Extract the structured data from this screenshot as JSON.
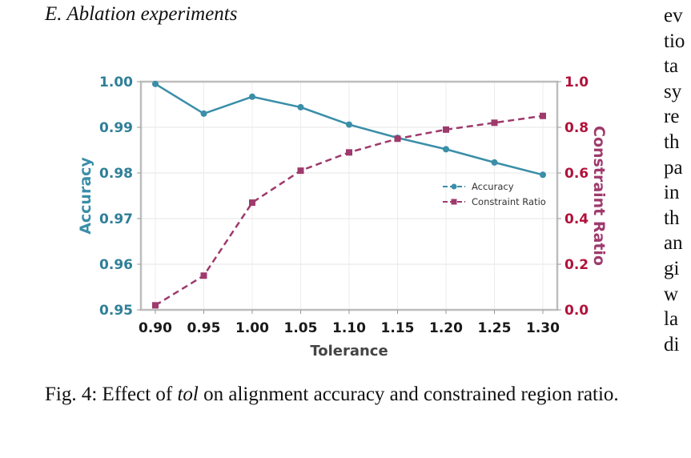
{
  "section": {
    "heading": "E.  Ablation experiments"
  },
  "caption": {
    "prefix": "Fig. 4: Effect of ",
    "emphasis": "tol",
    "suffix": " on alignment accuracy and constrained region ratio."
  },
  "right_column_fragments": [
    "ev",
    "tio",
    "ta",
    "sy",
    "re",
    "th",
    "pa",
    "in",
    "th",
    "an",
    "gi",
    "w",
    "la",
    "di"
  ],
  "colors": {
    "accuracy": "#3a8ea8",
    "constraint": "#9e3a6c",
    "left_axis": "#2f7f98",
    "right_axis": "#b1123a"
  },
  "chart_data": {
    "type": "line",
    "x": [
      0.9,
      0.95,
      1.0,
      1.05,
      1.1,
      1.15,
      1.2,
      1.25,
      1.3
    ],
    "x_tick_labels": [
      "0.90",
      "0.95",
      "1.00",
      "1.05",
      "1.10",
      "1.15",
      "1.20",
      "1.25",
      "1.30"
    ],
    "xlabel": "Tolerance",
    "ylabel_left": "Accuracy",
    "ylabel_right": "Constraint Ratio",
    "ylim_left": [
      0.95,
      1.0
    ],
    "ylim_right": [
      0.0,
      1.0
    ],
    "y_left_ticks": [
      "0.95",
      "0.96",
      "0.97",
      "0.98",
      "0.99",
      "1.00"
    ],
    "y_right_ticks": [
      "0.0",
      "0.2",
      "0.4",
      "0.6",
      "0.8",
      "1.0"
    ],
    "grid": true,
    "legend_position": "center-right",
    "series": [
      {
        "name": "Accuracy",
        "axis": "left",
        "style": "solid",
        "marker": "circle",
        "values": [
          0.9995,
          0.993,
          0.9967,
          0.9944,
          0.9906,
          0.9877,
          0.9852,
          0.9823,
          0.9796
        ]
      },
      {
        "name": "Constraint Ratio",
        "axis": "right",
        "style": "dashed",
        "marker": "square",
        "values": [
          0.02,
          0.15,
          0.47,
          0.61,
          0.69,
          0.75,
          0.79,
          0.82,
          0.85
        ]
      }
    ]
  }
}
